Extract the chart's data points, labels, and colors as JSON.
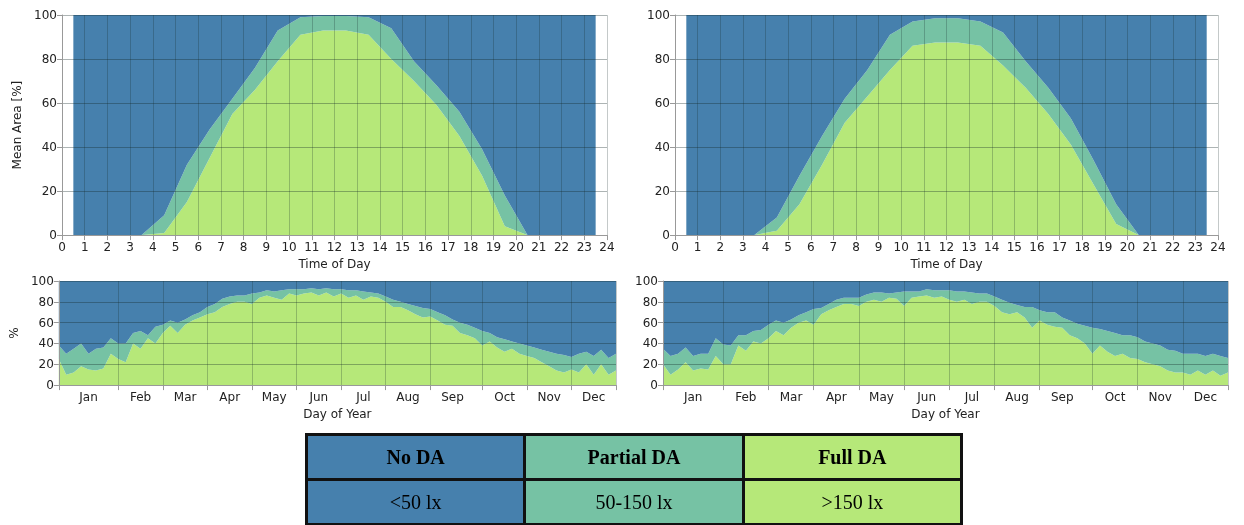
{
  "chart_data": [
    {
      "type": "area",
      "stacked": true,
      "xlabel": "Time of Day",
      "ylabel": "Mean Area [%]",
      "xlim": [
        0,
        24
      ],
      "xticks": [
        0,
        1,
        2,
        3,
        4,
        5,
        6,
        7,
        8,
        9,
        10,
        11,
        12,
        13,
        14,
        15,
        16,
        17,
        18,
        19,
        20,
        21,
        22,
        23,
        24
      ],
      "ylim": [
        0,
        100
      ],
      "yticks": [
        0,
        20,
        40,
        60,
        80,
        100
      ],
      "grid": true,
      "legend": false,
      "x": [
        0.5,
        1.5,
        2.5,
        3.5,
        4.5,
        5.5,
        6.5,
        7.5,
        8.5,
        9.5,
        10.5,
        11.5,
        12.5,
        13.5,
        14.5,
        15.5,
        16.5,
        17.5,
        18.5,
        19.5,
        20.5,
        21.5,
        22.5,
        23.5
      ],
      "series": [
        {
          "color": "#b6e879",
          "values": [
            0,
            0,
            0,
            0,
            1,
            15,
            35,
            55,
            66,
            79,
            91,
            93,
            93,
            91,
            80,
            70,
            59,
            45,
            27,
            4,
            0,
            0,
            0,
            0
          ]
        },
        {
          "color": "#76c2a4",
          "values": [
            0,
            0,
            0,
            0,
            8,
            17,
            13,
            7,
            10,
            14,
            8,
            6.5,
            6.5,
            8,
            14,
            9,
            9,
            11,
            12,
            14,
            0,
            0,
            0,
            0
          ]
        },
        {
          "color": "#4680ad",
          "values": [
            100,
            100,
            100,
            100,
            91,
            68,
            52,
            38,
            24,
            7,
            1,
            0.5,
            0.5,
            1,
            6,
            21,
            32,
            44,
            61,
            82,
            100,
            100,
            100,
            100
          ]
        }
      ]
    },
    {
      "type": "area",
      "stacked": true,
      "xlabel": "Time of Day",
      "xlim": [
        0,
        24
      ],
      "xticks": [
        0,
        1,
        2,
        3,
        4,
        5,
        6,
        7,
        8,
        9,
        10,
        11,
        12,
        13,
        14,
        15,
        16,
        17,
        18,
        19,
        20,
        21,
        22,
        23,
        24
      ],
      "ylim": [
        0,
        100
      ],
      "yticks": [
        0,
        20,
        40,
        60,
        80,
        100
      ],
      "grid": true,
      "legend": false,
      "x": [
        0.5,
        1.5,
        2.5,
        3.5,
        4.5,
        5.5,
        6.5,
        7.5,
        8.5,
        9.5,
        10.5,
        11.5,
        12.5,
        13.5,
        14.5,
        15.5,
        16.5,
        17.5,
        18.5,
        19.5,
        20.5,
        21.5,
        22.5,
        23.5
      ],
      "series": [
        {
          "color": "#b6e879",
          "values": [
            0,
            0,
            0,
            0,
            2,
            14,
            32,
            51,
            63,
            75,
            86,
            87.5,
            87.5,
            86,
            77,
            67,
            55,
            41,
            23,
            5,
            0,
            0,
            0,
            0
          ]
        },
        {
          "color": "#76c2a4",
          "values": [
            0,
            0,
            0,
            0,
            6,
            13,
            13,
            11,
            12,
            16,
            11,
            11,
            11,
            11,
            15,
            12,
            12,
            12,
            11,
            9,
            0,
            0,
            0,
            0
          ]
        },
        {
          "color": "#4680ad",
          "values": [
            100,
            100,
            100,
            100,
            92,
            73,
            55,
            38,
            25,
            9,
            3,
            1.5,
            1.5,
            3,
            8,
            21,
            33,
            47,
            66,
            86,
            100,
            100,
            100,
            100
          ]
        }
      ]
    },
    {
      "type": "area",
      "stacked": true,
      "xlabel": "Day of Year",
      "ylabel": "%",
      "ylim": [
        0,
        100
      ],
      "yticks": [
        0,
        20,
        40,
        60,
        80,
        100
      ],
      "grid": true,
      "legend": false,
      "categories": [
        null,
        null,
        null,
        null,
        "Jan",
        null,
        null,
        null,
        null,
        null,
        null,
        "Feb",
        null,
        null,
        null,
        null,
        null,
        "Mar",
        null,
        null,
        null,
        null,
        null,
        "Apr",
        null,
        null,
        null,
        null,
        null,
        "May",
        null,
        null,
        null,
        null,
        null,
        "Jun",
        null,
        null,
        null,
        null,
        null,
        "Jul",
        null,
        null,
        null,
        null,
        null,
        "Aug",
        null,
        null,
        null,
        null,
        null,
        "Sep",
        null,
        null,
        null,
        null,
        null,
        null,
        "Oct",
        null,
        null,
        null,
        null,
        null,
        "Nov",
        null,
        null,
        null,
        null,
        null,
        "Dec",
        null,
        null,
        null
      ],
      "series": [
        {
          "color": "#b6e879",
          "values": [
            25,
            10,
            12,
            18,
            15,
            14,
            16,
            30,
            25,
            22,
            40,
            35,
            45,
            40,
            50,
            57,
            50,
            58,
            62,
            65,
            68,
            70,
            75,
            78,
            80,
            80,
            78,
            84,
            86,
            84,
            82,
            88,
            86,
            88,
            89,
            86,
            89,
            85,
            88,
            84,
            86,
            82,
            85,
            84,
            80,
            75,
            75,
            72,
            68,
            65,
            66,
            62,
            58,
            57,
            50,
            48,
            45,
            38,
            42,
            36,
            32,
            35,
            30,
            28,
            26,
            22,
            18,
            14,
            12,
            15,
            12,
            20,
            10,
            20,
            10,
            14
          ]
        },
        {
          "color": "#76c2a4",
          "values": [
            13,
            20,
            23,
            22,
            15,
            21,
            20,
            15,
            15,
            18,
            10,
            17,
            3,
            16,
            8,
            5,
            10,
            5,
            5,
            5,
            7,
            8,
            8,
            7,
            6,
            6,
            10,
            5,
            5,
            6,
            9,
            4,
            6,
            4,
            4,
            6,
            4,
            7,
            4,
            7,
            5,
            8,
            4,
            4,
            5,
            7,
            5,
            6,
            8,
            9,
            7,
            8,
            9,
            6,
            10,
            10,
            10,
            14,
            8,
            10,
            12,
            7,
            10,
            10,
            10,
            12,
            14,
            16,
            17,
            12,
            18,
            12,
            18,
            14,
            16,
            16
          ]
        },
        {
          "color": "#4680ad",
          "values": [
            62,
            70,
            65,
            60,
            70,
            65,
            64,
            55,
            60,
            60,
            50,
            48,
            52,
            44,
            42,
            38,
            40,
            37,
            33,
            30,
            25,
            22,
            17,
            15,
            14,
            14,
            12,
            11,
            9,
            10,
            9,
            8,
            8,
            8,
            7,
            8,
            7,
            8,
            8,
            9,
            9,
            10,
            11,
            12,
            15,
            18,
            20,
            22,
            24,
            26,
            27,
            30,
            33,
            37,
            40,
            42,
            45,
            48,
            50,
            54,
            56,
            58,
            60,
            62,
            64,
            66,
            68,
            70,
            71,
            73,
            70,
            68,
            72,
            66,
            74,
            70
          ]
        }
      ]
    },
    {
      "type": "area",
      "stacked": true,
      "xlabel": "Day of Year",
      "ylim": [
        0,
        100
      ],
      "yticks": [
        0,
        20,
        40,
        60,
        80,
        100
      ],
      "grid": true,
      "legend": "bottom",
      "annotations": [
        "<50 lx",
        "50-150 lx",
        ">150 lx"
      ],
      "categories": [
        null,
        null,
        null,
        null,
        "Jan",
        null,
        null,
        null,
        null,
        null,
        null,
        "Feb",
        null,
        null,
        null,
        null,
        null,
        "Mar",
        null,
        null,
        null,
        null,
        null,
        "Apr",
        null,
        null,
        null,
        null,
        null,
        "May",
        null,
        null,
        null,
        null,
        null,
        "Jun",
        null,
        null,
        null,
        null,
        null,
        "Jul",
        null,
        null,
        null,
        null,
        null,
        "Aug",
        null,
        null,
        null,
        null,
        null,
        "Sep",
        null,
        null,
        null,
        null,
        null,
        null,
        "Oct",
        null,
        null,
        null,
        null,
        null,
        "Nov",
        null,
        null,
        null,
        null,
        null,
        "Dec",
        null,
        null,
        null
      ],
      "series": [
        {
          "name": "Full DA",
          "color": "#b6e879",
          "values": [
            20,
            10,
            15,
            22,
            14,
            16,
            15,
            28,
            20,
            20,
            38,
            33,
            42,
            40,
            45,
            52,
            48,
            55,
            60,
            62,
            58,
            68,
            72,
            75,
            78,
            78,
            76,
            80,
            82,
            80,
            84,
            83,
            76,
            84,
            85,
            86,
            84,
            85,
            82,
            80,
            82,
            78,
            80,
            80,
            76,
            70,
            68,
            70,
            65,
            55,
            62,
            58,
            56,
            55,
            48,
            45,
            40,
            30,
            38,
            32,
            28,
            30,
            26,
            25,
            22,
            20,
            18,
            14,
            12,
            12,
            10,
            14,
            10,
            14,
            9,
            12
          ]
        },
        {
          "name": "Partial DA",
          "color": "#76c2a4",
          "values": [
            15,
            18,
            15,
            14,
            14,
            14,
            15,
            17,
            19,
            18,
            10,
            15,
            10,
            13,
            13,
            10,
            12,
            8,
            7,
            8,
            15,
            6,
            6,
            7,
            6,
            6,
            8,
            7,
            7,
            9,
            4,
            6,
            14,
            6,
            5,
            6,
            7,
            6,
            9,
            10,
            8,
            11,
            8,
            8,
            9,
            12,
            11,
            7,
            10,
            20,
            10,
            12,
            14,
            10,
            14,
            14,
            17,
            25,
            16,
            20,
            22,
            18,
            22,
            21,
            20,
            20,
            20,
            20,
            21,
            18,
            20,
            16,
            18,
            16,
            19,
            14
          ]
        },
        {
          "name": "No DA",
          "color": "#4680ad",
          "values": [
            65,
            72,
            70,
            64,
            72,
            70,
            70,
            55,
            61,
            62,
            52,
            52,
            48,
            47,
            42,
            38,
            40,
            37,
            33,
            30,
            27,
            26,
            22,
            18,
            16,
            16,
            16,
            13,
            11,
            11,
            12,
            11,
            10,
            10,
            10,
            8,
            9,
            9,
            9,
            10,
            10,
            11,
            12,
            12,
            15,
            18,
            21,
            23,
            25,
            25,
            28,
            30,
            30,
            35,
            38,
            41,
            43,
            45,
            46,
            48,
            50,
            52,
            52,
            54,
            58,
            60,
            62,
            66,
            67,
            70,
            70,
            70,
            72,
            70,
            72,
            74
          ]
        }
      ]
    }
  ]
}
